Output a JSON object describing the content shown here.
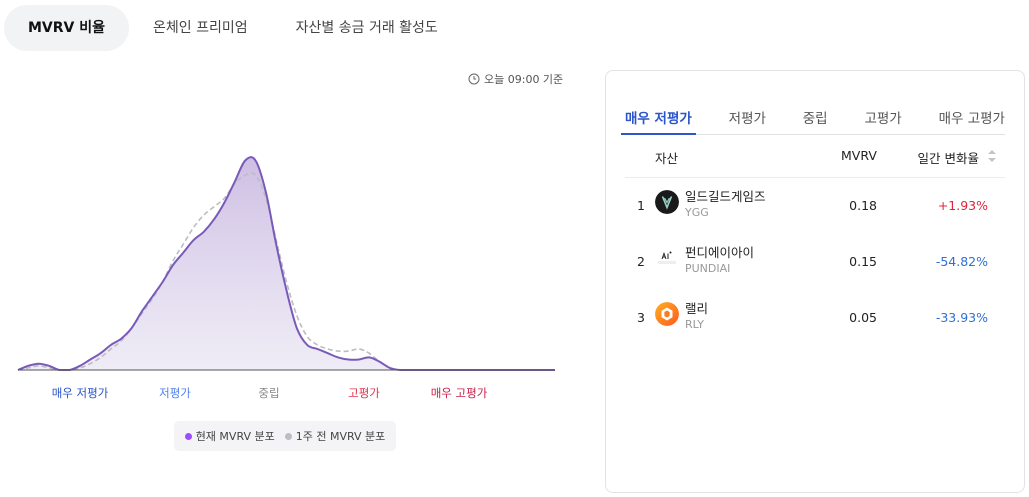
{
  "tabs": [
    {
      "label": "MVRV 비율",
      "active": true
    },
    {
      "label": "온체인 프리미엄",
      "active": false
    },
    {
      "label": "자산별 송금 거래 활성도",
      "active": false
    }
  ],
  "timestamp": "오늘 09:00 기준",
  "chart": {
    "zones": [
      {
        "label": "매우 저평가",
        "color": "#2b55c8"
      },
      {
        "label": "저평가",
        "color": "#4f7ff0"
      },
      {
        "label": "중립",
        "color": "#888888"
      },
      {
        "label": "고평가",
        "color": "#e0344f"
      },
      {
        "label": "매우 고평가",
        "color": "#c81f4a"
      }
    ],
    "legend": [
      {
        "label": "현재 MVRV 분포",
        "color": "#9b4dff"
      },
      {
        "label": "1주 전 MVRV 분포",
        "color": "#bcbcc6"
      }
    ]
  },
  "chart_data": {
    "type": "area",
    "x": [
      0,
      1,
      2,
      3,
      4,
      5,
      6,
      7,
      8,
      9,
      10,
      11,
      12,
      13,
      14,
      15,
      16,
      17,
      18,
      19,
      20,
      21,
      22,
      23,
      24,
      25,
      26,
      27,
      28,
      29,
      30,
      31,
      32,
      33,
      34,
      35,
      36,
      37,
      38,
      39,
      40,
      41,
      42,
      43,
      44,
      45,
      46,
      47,
      48,
      49,
      50,
      51,
      52
    ],
    "series": [
      {
        "name": "현재 MVRV 분포",
        "color": "#7a5ab8",
        "values": [
          0,
          0.02,
          0.03,
          0.02,
          0,
          0,
          0.02,
          0.05,
          0.08,
          0.12,
          0.15,
          0.2,
          0.28,
          0.35,
          0.42,
          0.5,
          0.56,
          0.62,
          0.66,
          0.72,
          0.8,
          0.9,
          1.0,
          1.0,
          0.85,
          0.6,
          0.38,
          0.2,
          0.12,
          0.1,
          0.08,
          0.06,
          0.05,
          0.05,
          0.06,
          0.04,
          0.01,
          0,
          0,
          0,
          0,
          0,
          0,
          0,
          0,
          0,
          0,
          0,
          0,
          0,
          0,
          0,
          0
        ]
      },
      {
        "name": "1주 전 MVRV 분포",
        "color": "#bcbcc6",
        "values": [
          0,
          0.01,
          0.02,
          0.01,
          0,
          0,
          0.01,
          0.03,
          0.06,
          0.1,
          0.14,
          0.2,
          0.27,
          0.34,
          0.42,
          0.52,
          0.6,
          0.68,
          0.74,
          0.78,
          0.82,
          0.89,
          0.93,
          0.93,
          0.82,
          0.62,
          0.42,
          0.26,
          0.16,
          0.12,
          0.1,
          0.09,
          0.09,
          0.1,
          0.08,
          0.04,
          0.01,
          0,
          0,
          0,
          0,
          0,
          0,
          0,
          0,
          0,
          0,
          0,
          0,
          0,
          0,
          0,
          0
        ]
      }
    ],
    "xlabel": "",
    "ylabel": "",
    "ylim": [
      0,
      1.05
    ],
    "grid": false,
    "legend": "bottom-center"
  },
  "panel": {
    "tabs": [
      {
        "label": "매우 저평가",
        "active": true
      },
      {
        "label": "저평가",
        "active": false
      },
      {
        "label": "중립",
        "active": false
      },
      {
        "label": "고평가",
        "active": false
      },
      {
        "label": "매우 고평가",
        "active": false
      }
    ],
    "columns": {
      "asset": "자산",
      "mvrv": "MVRV",
      "change": "일간 변화율"
    },
    "rows": [
      {
        "rank": "1",
        "name": "일드길드게임즈",
        "ticker": "YGG",
        "mvrv": "0.18",
        "change": "+1.93%",
        "direction": "up",
        "icon": "ygg-icon"
      },
      {
        "rank": "2",
        "name": "펀디에이아이",
        "ticker": "PUNDIAI",
        "mvrv": "0.15",
        "change": "-54.82%",
        "direction": "down",
        "icon": "pundiai-icon"
      },
      {
        "rank": "3",
        "name": "랠리",
        "ticker": "RLY",
        "mvrv": "0.05",
        "change": "-33.93%",
        "direction": "down",
        "icon": "rly-icon"
      }
    ]
  }
}
